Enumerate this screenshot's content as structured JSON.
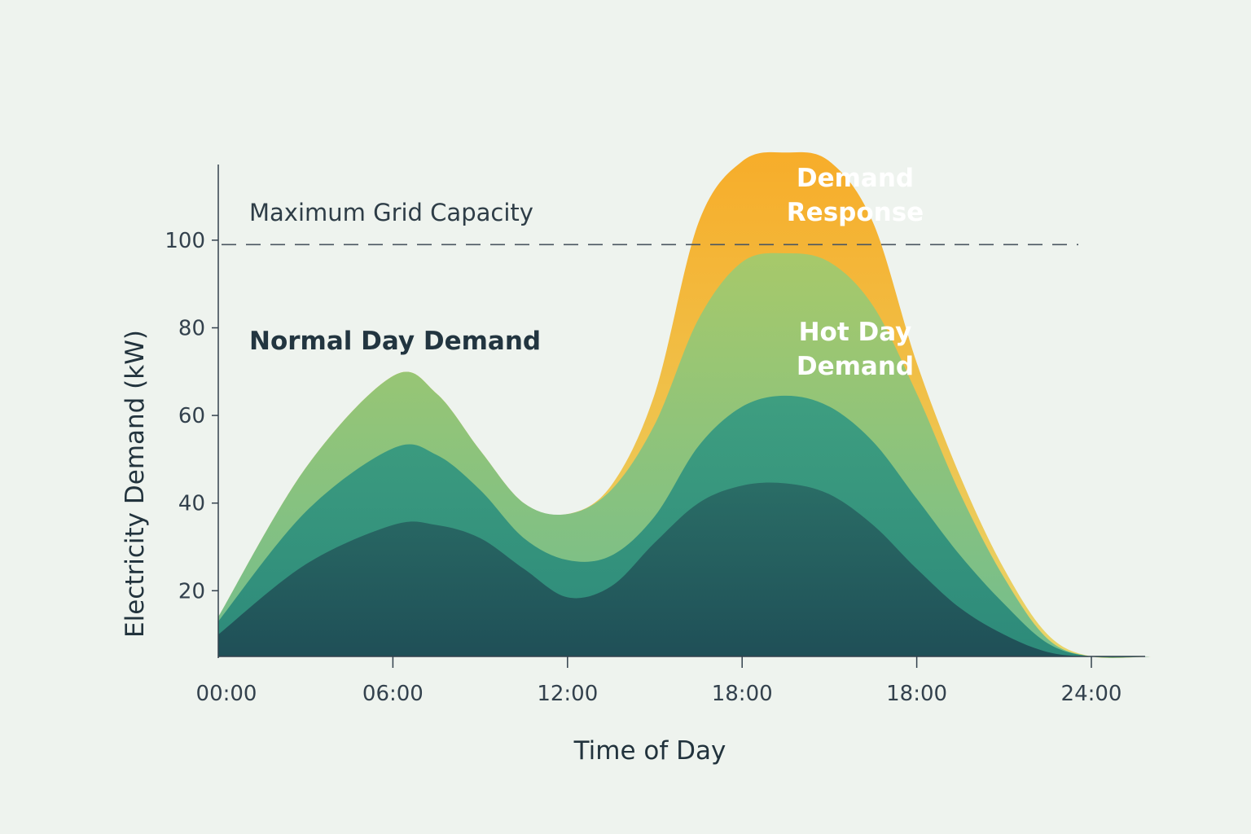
{
  "chart_data": {
    "type": "area",
    "xlabel": "Time of Day",
    "ylabel": "Electricity Demand (kW)",
    "x_tick_labels": [
      "00:00",
      "06:00",
      "12:00",
      "18:00",
      "18:00",
      "24:00"
    ],
    "y_ticks": [
      20,
      40,
      60,
      80,
      100
    ],
    "ylim": [
      5,
      120
    ],
    "grid": false,
    "reference_line": {
      "label": "Maximum Grid Capacity",
      "value": 99,
      "style": "dashed"
    },
    "annotations": {
      "normal_day": "Normal Day Demand",
      "hot_day_line1": "Hot Day",
      "hot_day_line2": "Demand",
      "demand_response_line1": "Demand",
      "demand_response_line2": "Response"
    },
    "x_positions_index": [
      0,
      2,
      4,
      6,
      8,
      10
    ],
    "series": [
      {
        "name": "Demand Response",
        "color_top": "#f7ad2a",
        "color_bottom": "#e8d56a",
        "x": [
          0,
          1,
          2,
          2.5,
          3,
          3.5,
          4,
          4.5,
          5,
          5.5,
          6,
          6.5,
          7,
          7.5,
          8,
          8.5,
          9,
          9.5,
          10,
          10.7
        ],
        "values": [
          14,
          48,
          69,
          65,
          52,
          40,
          37.5,
          44,
          65,
          104,
          118,
          120,
          118,
          104,
          72,
          46,
          25,
          10,
          5,
          5
        ]
      },
      {
        "name": "Hot Day Demand",
        "color_top": "#a7c96a",
        "color_bottom": "#72bd8e",
        "x": [
          0,
          1,
          2,
          2.5,
          3,
          3.5,
          4,
          4.5,
          5,
          5.5,
          6,
          6.5,
          7,
          7.5,
          8,
          8.5,
          9,
          9.5,
          10,
          10.7
        ],
        "values": [
          14,
          48,
          69,
          65,
          52,
          40,
          37.5,
          43,
          58,
          82,
          95,
          97,
          95,
          85,
          65,
          42,
          23,
          9,
          5,
          5
        ]
      },
      {
        "name": "",
        "color_top": "#3e9e80",
        "color_bottom": "#2d8a7a",
        "x": [
          0,
          1,
          2,
          2.5,
          3,
          3.5,
          4,
          4.5,
          5,
          5.5,
          6,
          6.5,
          7,
          7.5,
          8,
          8.5,
          9,
          9.5,
          10,
          10.7
        ],
        "values": [
          13,
          38,
          52.5,
          51,
          43,
          32,
          27,
          28,
          37,
          53,
          62,
          64.5,
          62,
          54,
          41,
          28,
          17,
          8,
          5,
          5
        ]
      },
      {
        "name": "",
        "color_top": "#2a6d66",
        "color_bottom": "#1f4f57",
        "x": [
          0,
          1,
          2,
          2.5,
          3,
          3.5,
          4,
          4.5,
          5,
          5.5,
          6,
          6.5,
          7,
          7.5,
          8,
          8.5,
          9,
          9.5,
          10,
          10.7
        ],
        "values": [
          10,
          26,
          35,
          35,
          32,
          25,
          18.5,
          21,
          31,
          40,
          44,
          44.5,
          42,
          35,
          25,
          16,
          10,
          6,
          5,
          5
        ]
      }
    ]
  }
}
